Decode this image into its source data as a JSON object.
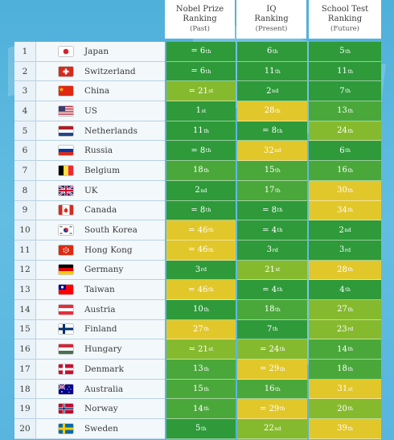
{
  "headers": [
    {
      "line1": "Nobel Prize",
      "line2": "Ranking",
      "line3": "(Past)"
    },
    {
      "line1": "IQ",
      "line2": "Ranking",
      "line3": "(Present)"
    },
    {
      "line1": "School Test",
      "line2": "Ranking",
      "line3": "(Future)"
    }
  ],
  "colors": {
    "dark_green": "#2e9a3a",
    "green": "#4aa83a",
    "light_green": "#86ba2e",
    "yellow": "#e2c72a"
  },
  "chart_data": {
    "type": "table",
    "columns": [
      "Nobel Prize Ranking (Past)",
      "IQ Ranking (Present)",
      "School Test Ranking (Future)"
    ],
    "rows": [
      {
        "rank": "1",
        "country": "Japan",
        "flag": "japan",
        "cells": [
          {
            "t": "= 6",
            "s": "th",
            "c": "dark_green"
          },
          {
            "t": "6",
            "s": "th",
            "c": "dark_green"
          },
          {
            "t": "5",
            "s": "th",
            "c": "dark_green"
          }
        ]
      },
      {
        "rank": "2",
        "country": "Switzerland",
        "flag": "switzerland",
        "cells": [
          {
            "t": "= 6",
            "s": "th",
            "c": "dark_green"
          },
          {
            "t": "11",
            "s": "th",
            "c": "dark_green"
          },
          {
            "t": "11",
            "s": "th",
            "c": "dark_green"
          }
        ]
      },
      {
        "rank": "3",
        "country": "China",
        "flag": "china",
        "cells": [
          {
            "t": "= 21",
            "s": "st",
            "c": "light_green"
          },
          {
            "t": "2",
            "s": "nd",
            "c": "dark_green"
          },
          {
            "t": "7",
            "s": "th",
            "c": "dark_green"
          }
        ]
      },
      {
        "rank": "4",
        "country": "US",
        "flag": "us",
        "cells": [
          {
            "t": "1",
            "s": "st",
            "c": "dark_green"
          },
          {
            "t": "28",
            "s": "th",
            "c": "yellow"
          },
          {
            "t": "13",
            "s": "th",
            "c": "green"
          }
        ]
      },
      {
        "rank": "5",
        "country": "Netherlands",
        "flag": "netherlands",
        "cells": [
          {
            "t": "11",
            "s": "th",
            "c": "dark_green"
          },
          {
            "t": "= 8",
            "s": "th",
            "c": "dark_green"
          },
          {
            "t": "24",
            "s": "th",
            "c": "light_green"
          }
        ]
      },
      {
        "rank": "6",
        "country": "Russia",
        "flag": "russia",
        "cells": [
          {
            "t": "= 8",
            "s": "th",
            "c": "dark_green"
          },
          {
            "t": "32",
            "s": "nd",
            "c": "yellow"
          },
          {
            "t": "6",
            "s": "th",
            "c": "dark_green"
          }
        ]
      },
      {
        "rank": "7",
        "country": "Belgium",
        "flag": "belgium",
        "cells": [
          {
            "t": "18",
            "s": "th",
            "c": "green"
          },
          {
            "t": "15",
            "s": "th",
            "c": "green"
          },
          {
            "t": "16",
            "s": "th",
            "c": "green"
          }
        ]
      },
      {
        "rank": "8",
        "country": "UK",
        "flag": "uk",
        "cells": [
          {
            "t": "2",
            "s": "nd",
            "c": "dark_green"
          },
          {
            "t": "17",
            "s": "th",
            "c": "green"
          },
          {
            "t": "30",
            "s": "th",
            "c": "yellow"
          }
        ]
      },
      {
        "rank": "9",
        "country": "Canada",
        "flag": "canada",
        "cells": [
          {
            "t": "= 8",
            "s": "th",
            "c": "dark_green"
          },
          {
            "t": "= 8",
            "s": "th",
            "c": "dark_green"
          },
          {
            "t": "34",
            "s": "th",
            "c": "yellow"
          }
        ]
      },
      {
        "rank": "10",
        "country": "South Korea",
        "flag": "south_korea",
        "cells": [
          {
            "t": "= 46",
            "s": "th",
            "c": "yellow"
          },
          {
            "t": "= 4",
            "s": "th",
            "c": "dark_green"
          },
          {
            "t": "2",
            "s": "nd",
            "c": "dark_green"
          }
        ]
      },
      {
        "rank": "11",
        "country": "Hong Kong",
        "flag": "hong_kong",
        "cells": [
          {
            "t": "= 46",
            "s": "th",
            "c": "yellow"
          },
          {
            "t": "3",
            "s": "rd",
            "c": "dark_green"
          },
          {
            "t": "3",
            "s": "rd",
            "c": "dark_green"
          }
        ]
      },
      {
        "rank": "12",
        "country": "Germany",
        "flag": "germany",
        "cells": [
          {
            "t": "3",
            "s": "rd",
            "c": "dark_green"
          },
          {
            "t": "21",
            "s": "st",
            "c": "light_green"
          },
          {
            "t": "28",
            "s": "th",
            "c": "yellow"
          }
        ]
      },
      {
        "rank": "13",
        "country": "Taiwan",
        "flag": "taiwan",
        "cells": [
          {
            "t": "= 46",
            "s": "th",
            "c": "yellow"
          },
          {
            "t": "= 4",
            "s": "th",
            "c": "dark_green"
          },
          {
            "t": "4",
            "s": "th",
            "c": "dark_green"
          }
        ]
      },
      {
        "rank": "14",
        "country": "Austria",
        "flag": "austria",
        "cells": [
          {
            "t": "10",
            "s": "th",
            "c": "dark_green"
          },
          {
            "t": "18",
            "s": "th",
            "c": "green"
          },
          {
            "t": "27",
            "s": "th",
            "c": "light_green"
          }
        ]
      },
      {
        "rank": "15",
        "country": "Finland",
        "flag": "finland",
        "cells": [
          {
            "t": "27",
            "s": "th",
            "c": "yellow"
          },
          {
            "t": "7",
            "s": "th",
            "c": "dark_green"
          },
          {
            "t": "23",
            "s": "rd",
            "c": "light_green"
          }
        ]
      },
      {
        "rank": "16",
        "country": "Hungary",
        "flag": "hungary",
        "cells": [
          {
            "t": "= 21",
            "s": "st",
            "c": "light_green"
          },
          {
            "t": "= 24",
            "s": "th",
            "c": "light_green"
          },
          {
            "t": "14",
            "s": "th",
            "c": "green"
          }
        ]
      },
      {
        "rank": "17",
        "country": "Denmark",
        "flag": "denmark",
        "cells": [
          {
            "t": "13",
            "s": "th",
            "c": "green"
          },
          {
            "t": "= 29",
            "s": "th",
            "c": "yellow"
          },
          {
            "t": "18",
            "s": "th",
            "c": "green"
          }
        ]
      },
      {
        "rank": "18",
        "country": "Australia",
        "flag": "australia",
        "cells": [
          {
            "t": "15",
            "s": "th",
            "c": "green"
          },
          {
            "t": "16",
            "s": "th",
            "c": "green"
          },
          {
            "t": "31",
            "s": "st",
            "c": "yellow"
          }
        ]
      },
      {
        "rank": "19",
        "country": "Norway",
        "flag": "norway",
        "cells": [
          {
            "t": "14",
            "s": "th",
            "c": "green"
          },
          {
            "t": "= 29",
            "s": "th",
            "c": "yellow"
          },
          {
            "t": "20",
            "s": "th",
            "c": "light_green"
          }
        ]
      },
      {
        "rank": "20",
        "country": "Sweden",
        "flag": "sweden",
        "cells": [
          {
            "t": "5",
            "s": "th",
            "c": "dark_green"
          },
          {
            "t": "22",
            "s": "nd",
            "c": "light_green"
          },
          {
            "t": "39",
            "s": "th",
            "c": "yellow"
          }
        ]
      }
    ]
  }
}
